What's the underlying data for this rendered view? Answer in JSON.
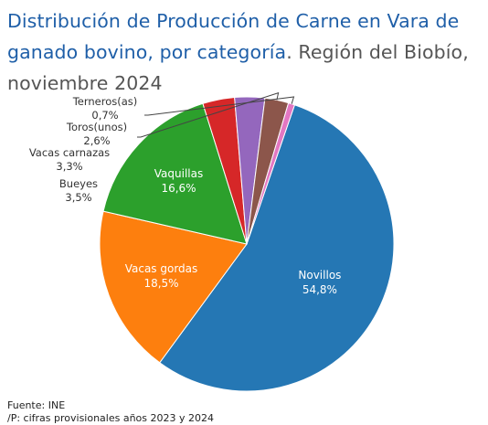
{
  "title": {
    "main": "Distribución de Producción de Carne en Vara de ganado bovino, por categoría",
    "sub": ". Región del Biobío, noviembre 2024"
  },
  "chart_data": {
    "type": "pie",
    "title": "Distribución de Producción de Carne en Vara de ganado bovino, por categoría. Región del Biobío, noviembre 2024",
    "unit": "%",
    "slices": [
      {
        "label": "Novillos",
        "value": 54.8,
        "display": "54,8%",
        "color": "#2577b4",
        "label_position": "inside"
      },
      {
        "label": "Vacas gordas",
        "value": 18.5,
        "display": "18,5%",
        "color": "#fd7f0e",
        "label_position": "inside"
      },
      {
        "label": "Vaquillas",
        "value": 16.6,
        "display": "16,6%",
        "color": "#2ca02c",
        "label_position": "inside"
      },
      {
        "label": "Bueyes",
        "value": 3.5,
        "display": "3,5%",
        "color": "#d62728",
        "label_position": "outside"
      },
      {
        "label": "Vacas carnazas",
        "value": 3.3,
        "display": "3,3%",
        "color": "#9467bd",
        "label_position": "outside"
      },
      {
        "label": "Toros(unos)",
        "value": 2.6,
        "display": "2,6%",
        "color": "#8c564b",
        "label_position": "outside"
      },
      {
        "label": "Terneros(as)",
        "value": 0.7,
        "display": "0,7%",
        "color": "#e377c2",
        "label_position": "outside"
      }
    ]
  },
  "footer": {
    "source": "Fuente: INE",
    "note": "/P: cifras provisionales años 2023 y 2024"
  }
}
